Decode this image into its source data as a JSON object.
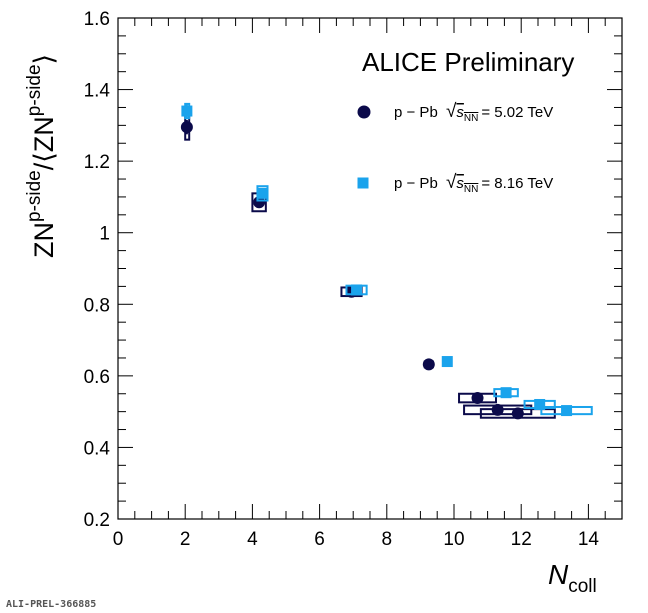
{
  "chart_data": {
    "type": "scatter",
    "experiment_label": "ALICE Preliminary",
    "figure_id": "ALI-PREL-366885",
    "xlabel": {
      "symbol": "N",
      "subscript": "coll"
    },
    "ylabel": {
      "num_base": "ZN",
      "num_sup": "p-side",
      "slash": "/",
      "langle": "⟨",
      "den_base": "ZN",
      "den_sup": "p-side",
      "rangle": "⟩"
    },
    "xlim": [
      0,
      15
    ],
    "ylim": [
      0.2,
      1.6
    ],
    "x_ticks": [
      0,
      2,
      4,
      6,
      8,
      10,
      12,
      14
    ],
    "x_tick_labels": [
      "0",
      "2",
      "4",
      "6",
      "8",
      "10",
      "12",
      "14"
    ],
    "y_ticks": [
      0.2,
      0.4,
      0.6,
      0.8,
      1.0,
      1.2,
      1.4,
      1.6
    ],
    "y_tick_labels": [
      "0.2",
      "0.4",
      "0.6",
      "0.8",
      "1",
      "1.2",
      "1.4",
      "1.6"
    ],
    "grid": false,
    "legend_position": "top-right",
    "series": [
      {
        "name": "p − Pb 5.02 TeV",
        "legend": {
          "system": "p − Pb",
          "s_symbol": "s",
          "s_subscript": "NN",
          "energy": "= 5.02 TeV"
        },
        "marker": "circle",
        "color": "#0b0a4a",
        "points": [
          {
            "x": 2.05,
            "y": 1.295,
            "stat": 0.02,
            "sys_dx": 0.05,
            "sys_dy": 0.035
          },
          {
            "x": 4.2,
            "y": 1.085,
            "stat": 0.01,
            "sys_dx": 0.2,
            "sys_dy": 0.025
          },
          {
            "x": 6.95,
            "y": 0.835,
            "stat": 0.005,
            "sys_dx": 0.3,
            "sys_dy": 0.012
          },
          {
            "x": 9.25,
            "y": 0.632,
            "stat": 0.005,
            "sys_dx": 0.12,
            "sys_dy": 0.008
          },
          {
            "x": 10.7,
            "y": 0.538,
            "stat": 0.005,
            "sys_dx": 0.55,
            "sys_dy": 0.012
          },
          {
            "x": 11.3,
            "y": 0.505,
            "stat": 0.005,
            "sys_dx": 1.0,
            "sys_dy": 0.012
          },
          {
            "x": 11.9,
            "y": 0.495,
            "stat": 0.005,
            "sys_dx": 1.1,
            "sys_dy": 0.012
          }
        ]
      },
      {
        "name": "p − Pb 8.16 TeV",
        "legend": {
          "system": "p − Pb",
          "s_symbol": "s",
          "s_subscript": "NN",
          "energy": "= 8.16 TeV"
        },
        "marker": "square",
        "color": "#1aa3ec",
        "points": [
          {
            "x": 2.05,
            "y": 1.34,
            "stat": 0.02,
            "sys_dx": 0.05,
            "sys_dy": 0.02
          },
          {
            "x": 4.3,
            "y": 1.11,
            "stat": 0.01,
            "sys_dx": 0.15,
            "sys_dy": 0.02
          },
          {
            "x": 7.1,
            "y": 0.84,
            "stat": 0.005,
            "sys_dx": 0.3,
            "sys_dy": 0.012
          },
          {
            "x": 9.8,
            "y": 0.64,
            "stat": 0.005,
            "sys_dx": 0.12,
            "sys_dy": 0.008
          },
          {
            "x": 11.55,
            "y": 0.553,
            "stat": 0.005,
            "sys_dx": 0.35,
            "sys_dy": 0.01
          },
          {
            "x": 12.55,
            "y": 0.52,
            "stat": 0.005,
            "sys_dx": 0.45,
            "sys_dy": 0.01
          },
          {
            "x": 13.35,
            "y": 0.503,
            "stat": 0.005,
            "sys_dx": 0.75,
            "sys_dy": 0.01
          }
        ]
      }
    ]
  }
}
